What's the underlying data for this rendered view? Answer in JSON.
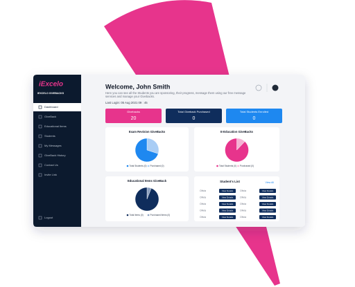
{
  "brand": {
    "logo": "iExcelo",
    "name": "IEXCELO GIVEBACKS"
  },
  "sidebar": [
    "Dashboard",
    "GiveBack",
    "Educational Items",
    "Students",
    "My Messages",
    "GiveBack History",
    "Contact Us",
    "Invite Link"
  ],
  "logout": "Logout",
  "header": {
    "title": "Welcome, John Smith",
    "subtitle": "Here you can see all the Students you are sponsoring, their progress, message them using our free message services and manage your Givebacks.",
    "last_login": "Last Login: 05 Aug 2021 09 : 45"
  },
  "stats": [
    {
      "label": "Givebacks",
      "value": 20,
      "color": "#e7348c"
    },
    {
      "label": "Total Giveback Purchased",
      "value": 0,
      "color": "#0f2d5c"
    },
    {
      "label": "Total Students Enrolled",
      "value": 0,
      "color": "#1e88f0"
    }
  ],
  "pies": [
    {
      "title": "Exam Revision GiveBacks",
      "slices": [
        {
          "name": "Total Students (0)",
          "value": 70,
          "color": "#1e88f0"
        },
        {
          "name": "Purchased (0)",
          "value": 30,
          "color": "#a9cdf5"
        }
      ]
    },
    {
      "title": "E-Education GiveBacks",
      "slices": [
        {
          "name": "Total Students (0)",
          "value": 88,
          "color": "#e7348c"
        },
        {
          "name": "Purchased (0)",
          "value": 12,
          "color": "#f4b3d3"
        }
      ]
    },
    {
      "title": "Educational Items GiveBack",
      "slices": [
        {
          "name": "Total Items (0)",
          "value": 94,
          "color": "#0f2d5c"
        },
        {
          "name": "Purchased Items (0)",
          "value": 6,
          "color": "#8ca0bf"
        }
      ]
    }
  ],
  "students": {
    "title": "Student's List",
    "view_all": "View All",
    "names": [
      "Olivia",
      "Olivia",
      "Olivia",
      "Olivia",
      "Olivia",
      "Olivia",
      "Olivia",
      "Olivia",
      "Olivia",
      "Olivia"
    ],
    "button": "View Details"
  }
}
